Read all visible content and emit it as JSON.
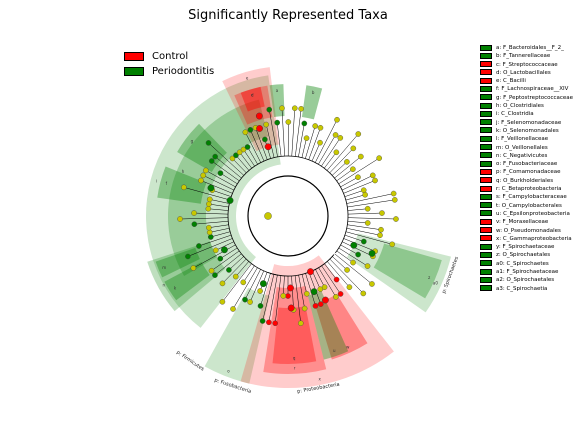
{
  "chart_data": {
    "type": "cladogram",
    "title": "Significantly Represented Taxa",
    "groups": [
      {
        "name": "Control",
        "color": "#ff0000"
      },
      {
        "name": "Periodontitis",
        "color": "#008000"
      }
    ],
    "background_node_color": "#c8c800",
    "phylum_labels": [
      {
        "label": "p: Firmicutes",
        "group": 1
      },
      {
        "label": "p: Fusobacteria",
        "group": 1
      },
      {
        "label": "p: Proteobacteria",
        "group": 0
      },
      {
        "label": "p: Spirochaetes",
        "group": 1
      }
    ],
    "taxa": [
      {
        "key": "a",
        "label": "a: F_Bacteroidales__F_2_",
        "group": 1
      },
      {
        "key": "b",
        "label": "b: F_Tannerellaceae",
        "group": 1
      },
      {
        "key": "c",
        "label": "c: F_Streptococcaceae",
        "group": 0
      },
      {
        "key": "d",
        "label": "d: O_Lactobacillales",
        "group": 0
      },
      {
        "key": "e",
        "label": "e: C_Bacilli",
        "group": 0
      },
      {
        "key": "f",
        "label": "f: F_Lachnospiraceae__XIV",
        "group": 1
      },
      {
        "key": "g",
        "label": "g: F_Peptostreptococcaceae",
        "group": 1
      },
      {
        "key": "h",
        "label": "h: O_Clostridiales",
        "group": 1
      },
      {
        "key": "i",
        "label": "i: C_Clostridia",
        "group": 1
      },
      {
        "key": "j",
        "label": "j: F_Selenomonadaceae",
        "group": 1
      },
      {
        "key": "k",
        "label": "k: O_Selenomonadales",
        "group": 1
      },
      {
        "key": "l",
        "label": "l: F_Veillonellaceae",
        "group": 1
      },
      {
        "key": "m",
        "label": "m: O_Veillonellales",
        "group": 1
      },
      {
        "key": "n",
        "label": "n: C_Negativicutes",
        "group": 1
      },
      {
        "key": "o",
        "label": "o: F_Fusobacteriaceae",
        "group": 1
      },
      {
        "key": "p",
        "label": "p: F_Comamonadaceae",
        "group": 0
      },
      {
        "key": "q",
        "label": "q: O_Burkholderiales",
        "group": 0
      },
      {
        "key": "r",
        "label": "r: C_Betaproteobacteria",
        "group": 0
      },
      {
        "key": "s",
        "label": "s: F_Campylobacteraceae",
        "group": 1
      },
      {
        "key": "t",
        "label": "t: O_Campylobacterales",
        "group": 1
      },
      {
        "key": "u",
        "label": "u: C_Epsilonproteobacteria",
        "group": 1
      },
      {
        "key": "v",
        "label": "v: F_Moraxellaceae",
        "group": 0
      },
      {
        "key": "w",
        "label": "w: O_Pseudomonadales",
        "group": 0
      },
      {
        "key": "x",
        "label": "x: C_Gammaproteobacteria",
        "group": 0
      },
      {
        "key": "y",
        "label": "y: F_Spirochaetaceae",
        "group": 1
      },
      {
        "key": "z",
        "label": "z: O_Spirochaetales",
        "group": 1
      },
      {
        "key": "a0",
        "label": "a0: C_Spirochaetes",
        "group": 1
      },
      {
        "key": "a1",
        "label": "a1: F_Spirochaetaceae",
        "group": 1
      },
      {
        "key": "a2",
        "label": "a2: O_Spirochaetales",
        "group": 1
      },
      {
        "key": "a3",
        "label": "a3: C_Spirochaetia",
        "group": 1
      }
    ]
  }
}
